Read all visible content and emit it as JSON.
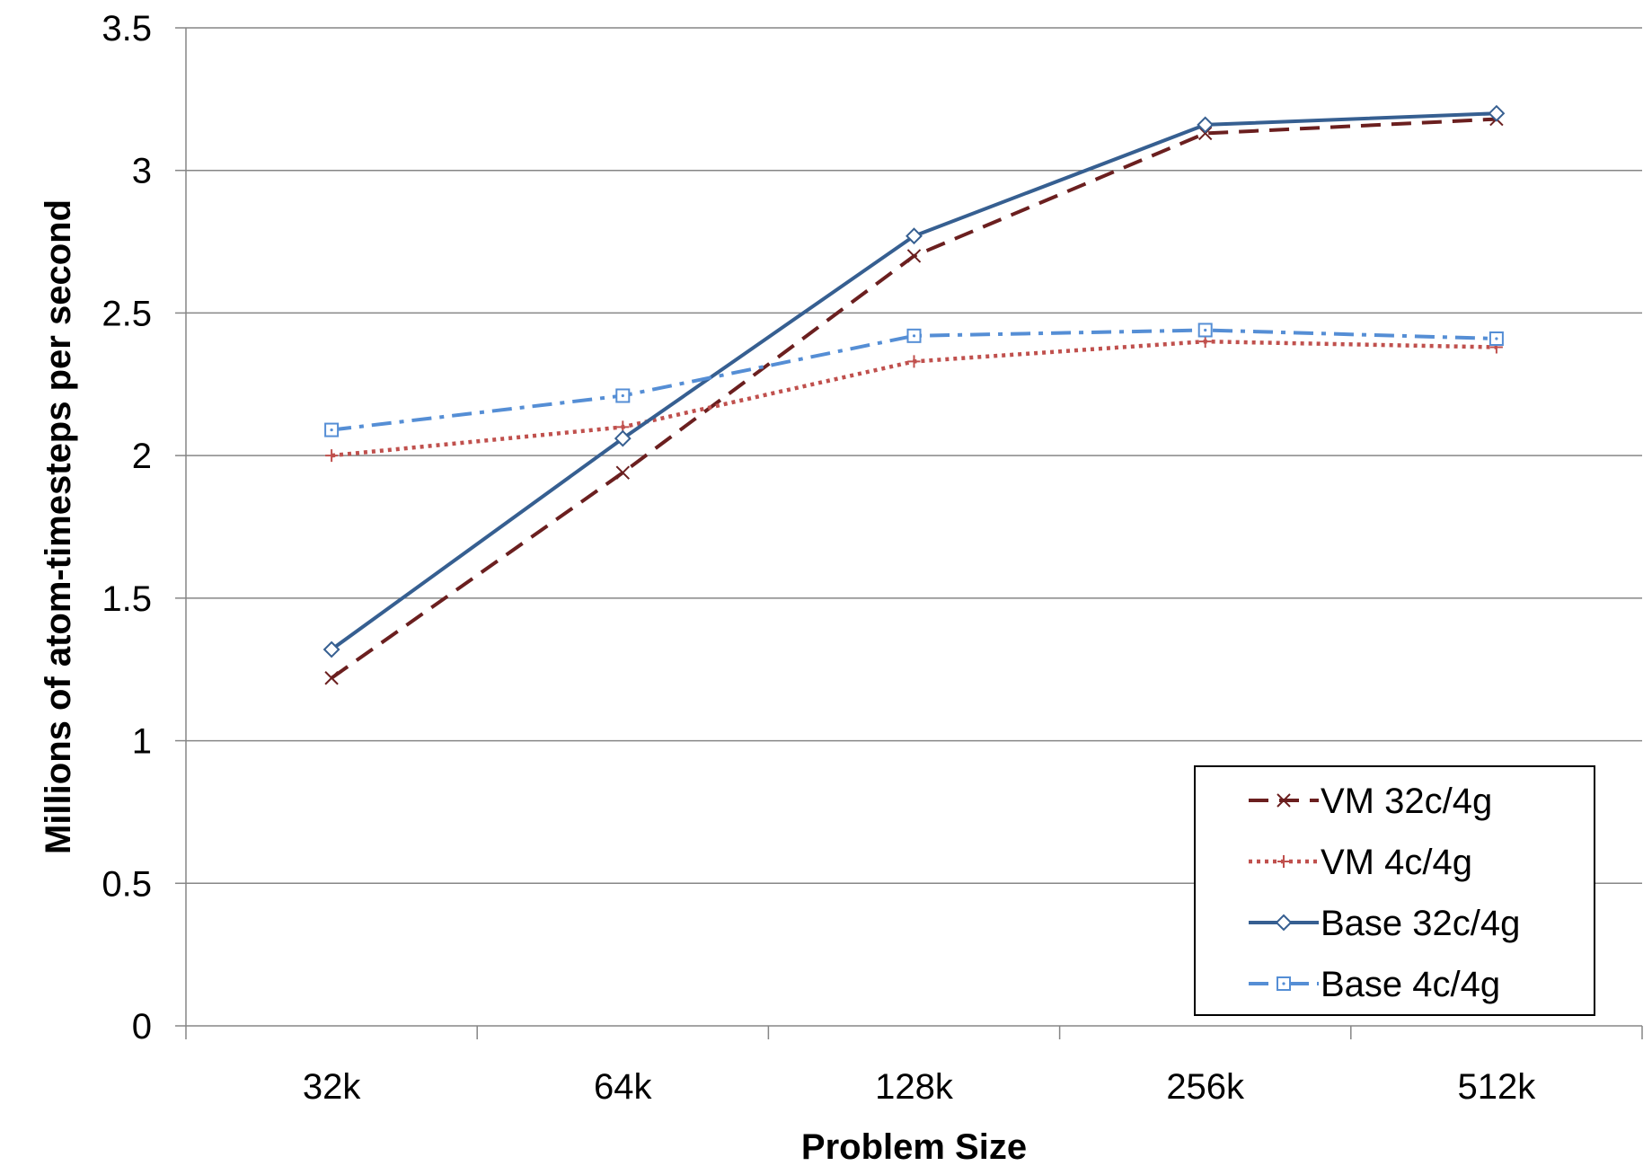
{
  "chart_data": {
    "type": "line",
    "xlabel": "Problem Size",
    "ylabel": "Millions of atom-timesteps per second",
    "categories": [
      "32k",
      "64k",
      "128k",
      "256k",
      "512k"
    ],
    "ylim": [
      0,
      3.5
    ],
    "yticks": [
      "0",
      "0.5",
      "1",
      "1.5",
      "2",
      "2.5",
      "3",
      "3.5"
    ],
    "grid": "horizontal",
    "legend_position": "bottom-right",
    "series": [
      {
        "name": "VM 32c/4g",
        "values": [
          1.22,
          1.94,
          2.7,
          3.13,
          3.18
        ],
        "color": "#6b1f1f",
        "dash": "long-dash",
        "marker": "x"
      },
      {
        "name": "VM 4c/4g",
        "values": [
          2.0,
          2.1,
          2.33,
          2.4,
          2.38
        ],
        "color": "#c0504d",
        "dash": "dotted",
        "marker": "plus"
      },
      {
        "name": "Base 32c/4g",
        "values": [
          1.32,
          2.06,
          2.77,
          3.16,
          3.2
        ],
        "color": "#365f91",
        "dash": "solid",
        "marker": "diamond"
      },
      {
        "name": "Base 4c/4g",
        "values": [
          2.09,
          2.21,
          2.42,
          2.44,
          2.41
        ],
        "color": "#558ed5",
        "dash": "dash-dot",
        "marker": "square"
      }
    ]
  }
}
